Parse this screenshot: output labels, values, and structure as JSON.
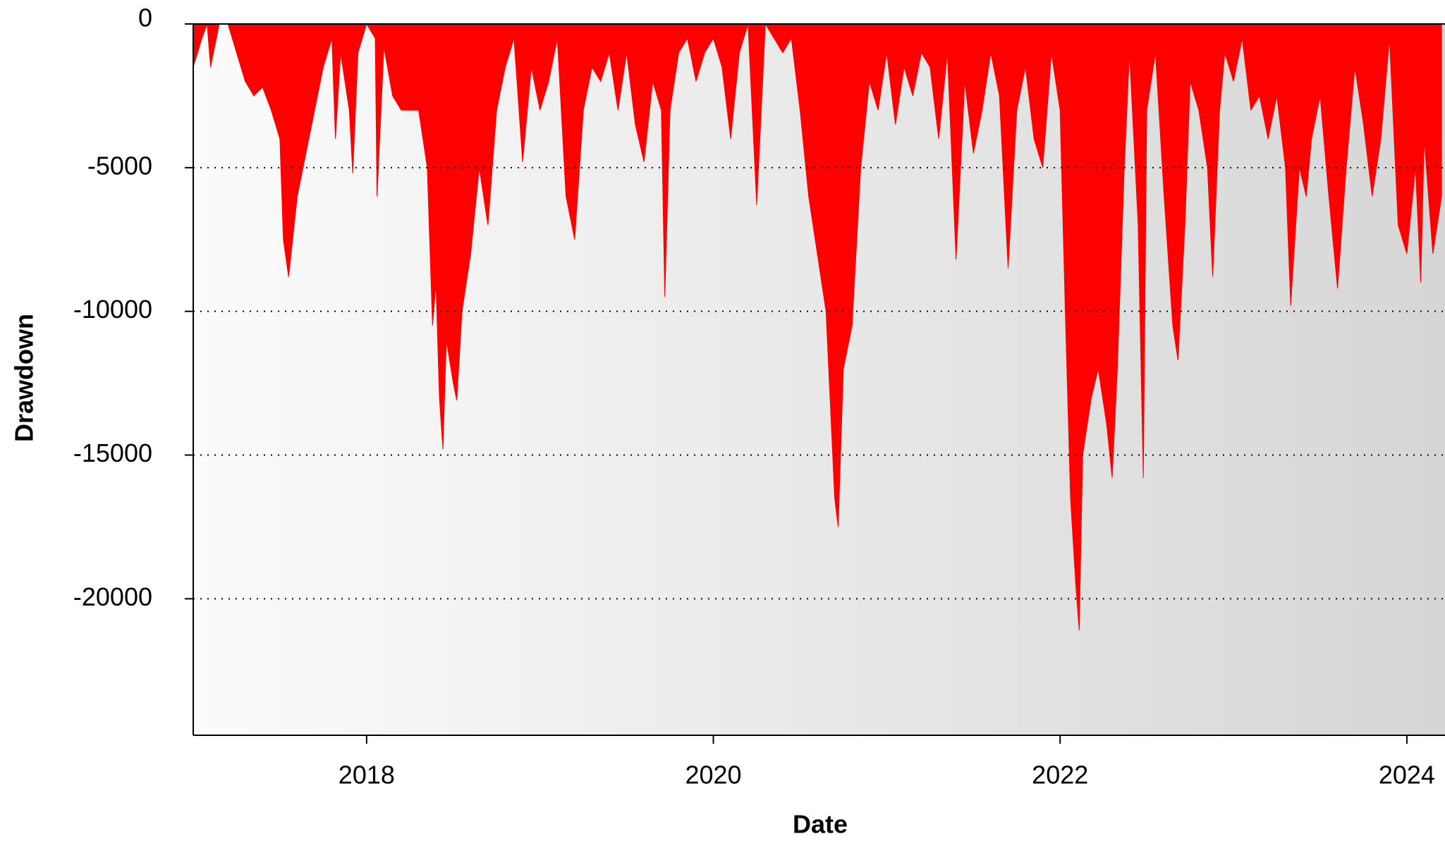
{
  "chart_data": {
    "type": "area",
    "x_label": "Date",
    "y_label": "Drawdown",
    "color": "#ff0000",
    "xlim": [
      2017.0,
      2024.22
    ],
    "xticks": [
      2018,
      2020,
      2022,
      2024
    ],
    "ylim": [
      -24750,
      0
    ],
    "yticks": [
      0,
      -5000,
      -10000,
      -15000,
      -20000
    ],
    "grid": true,
    "x": [
      2017.0,
      2017.05,
      2017.08,
      2017.1,
      2017.15,
      2017.2,
      2017.25,
      2017.3,
      2017.35,
      2017.4,
      2017.45,
      2017.5,
      2017.52,
      2017.55,
      2017.6,
      2017.65,
      2017.7,
      2017.75,
      2017.8,
      2017.82,
      2017.85,
      2017.9,
      2017.92,
      2017.95,
      2018.0,
      2018.05,
      2018.06,
      2018.1,
      2018.15,
      2018.2,
      2018.25,
      2018.3,
      2018.35,
      2018.38,
      2018.4,
      2018.42,
      2018.44,
      2018.46,
      2018.5,
      2018.52,
      2018.55,
      2018.6,
      2018.65,
      2018.7,
      2018.75,
      2018.8,
      2018.85,
      2018.9,
      2018.95,
      2019.0,
      2019.05,
      2019.1,
      2019.15,
      2019.2,
      2019.25,
      2019.3,
      2019.35,
      2019.4,
      2019.45,
      2019.5,
      2019.55,
      2019.6,
      2019.65,
      2019.7,
      2019.72,
      2019.75,
      2019.8,
      2019.85,
      2019.9,
      2019.95,
      2020.0,
      2020.05,
      2020.1,
      2020.15,
      2020.2,
      2020.25,
      2020.3,
      2020.35,
      2020.4,
      2020.45,
      2020.5,
      2020.55,
      2020.6,
      2020.65,
      2020.7,
      2020.72,
      2020.75,
      2020.8,
      2020.85,
      2020.9,
      2020.95,
      2021.0,
      2021.05,
      2021.1,
      2021.15,
      2021.2,
      2021.25,
      2021.3,
      2021.35,
      2021.4,
      2021.45,
      2021.5,
      2021.55,
      2021.6,
      2021.65,
      2021.7,
      2021.75,
      2021.8,
      2021.85,
      2021.9,
      2021.95,
      2022.0,
      2022.03,
      2022.06,
      2022.09,
      2022.11,
      2022.13,
      2022.18,
      2022.22,
      2022.27,
      2022.3,
      2022.33,
      2022.37,
      2022.4,
      2022.45,
      2022.48,
      2022.5,
      2022.55,
      2022.6,
      2022.65,
      2022.68,
      2022.72,
      2022.75,
      2022.8,
      2022.85,
      2022.88,
      2022.92,
      2022.95,
      2023.0,
      2023.05,
      2023.1,
      2023.15,
      2023.2,
      2023.25,
      2023.3,
      2023.33,
      2023.38,
      2023.42,
      2023.45,
      2023.5,
      2023.55,
      2023.6,
      2023.65,
      2023.7,
      2023.75,
      2023.8,
      2023.85,
      2023.9,
      2023.95,
      2024.0,
      2024.05,
      2024.08,
      2024.1,
      2024.15,
      2024.2
    ],
    "values": [
      -1500,
      -500,
      0,
      -1500,
      0,
      0,
      -1000,
      -2000,
      -2500,
      -2200,
      -3000,
      -4000,
      -7500,
      -8800,
      -6000,
      -4500,
      -3000,
      -1500,
      -500,
      -4000,
      -1000,
      -3000,
      -5200,
      -1000,
      0,
      -500,
      -6000,
      -800,
      -2500,
      -3000,
      -3000,
      -3000,
      -5000,
      -10500,
      -9000,
      -13000,
      -14800,
      -11000,
      -12500,
      -13100,
      -10000,
      -8000,
      -5000,
      -7000,
      -3000,
      -1500,
      -500,
      -4800,
      -1500,
      -3000,
      -2000,
      -500,
      -6000,
      -7500,
      -3000,
      -1500,
      -2000,
      -1000,
      -3000,
      -1000,
      -3500,
      -4800,
      -2000,
      -3000,
      -9500,
      -3000,
      -1000,
      -500,
      -2000,
      -1000,
      -500,
      -1500,
      -4000,
      -1000,
      0,
      -6300,
      0,
      -500,
      -1000,
      -500,
      -3000,
      -6000,
      -8000,
      -10000,
      -16500,
      -17500,
      -12000,
      -10500,
      -5000,
      -2000,
      -3000,
      -1000,
      -3500,
      -1500,
      -2500,
      -1000,
      -1500,
      -4000,
      -1000,
      -8200,
      -2000,
      -4500,
      -3000,
      -1000,
      -2500,
      -8500,
      -3000,
      -1500,
      -4000,
      -5000,
      -1000,
      -3000,
      -10000,
      -16500,
      -19500,
      -21100,
      -15000,
      -13000,
      -12000,
      -14000,
      -15800,
      -12000,
      -5000,
      -1000,
      -7000,
      -15800,
      -3000,
      -1000,
      -6000,
      -10500,
      -11700,
      -7000,
      -2000,
      -3000,
      -5000,
      -8800,
      -3000,
      -1000,
      -2000,
      -500,
      -3000,
      -2500,
      -4000,
      -2500,
      -5000,
      -9800,
      -5000,
      -6000,
      -4000,
      -2500,
      -6000,
      -9200,
      -5000,
      -1500,
      -3500,
      -6000,
      -4000,
      -500,
      -7000,
      -8000,
      -5000,
      -9000,
      -4000,
      -8000,
      -6000
    ]
  }
}
